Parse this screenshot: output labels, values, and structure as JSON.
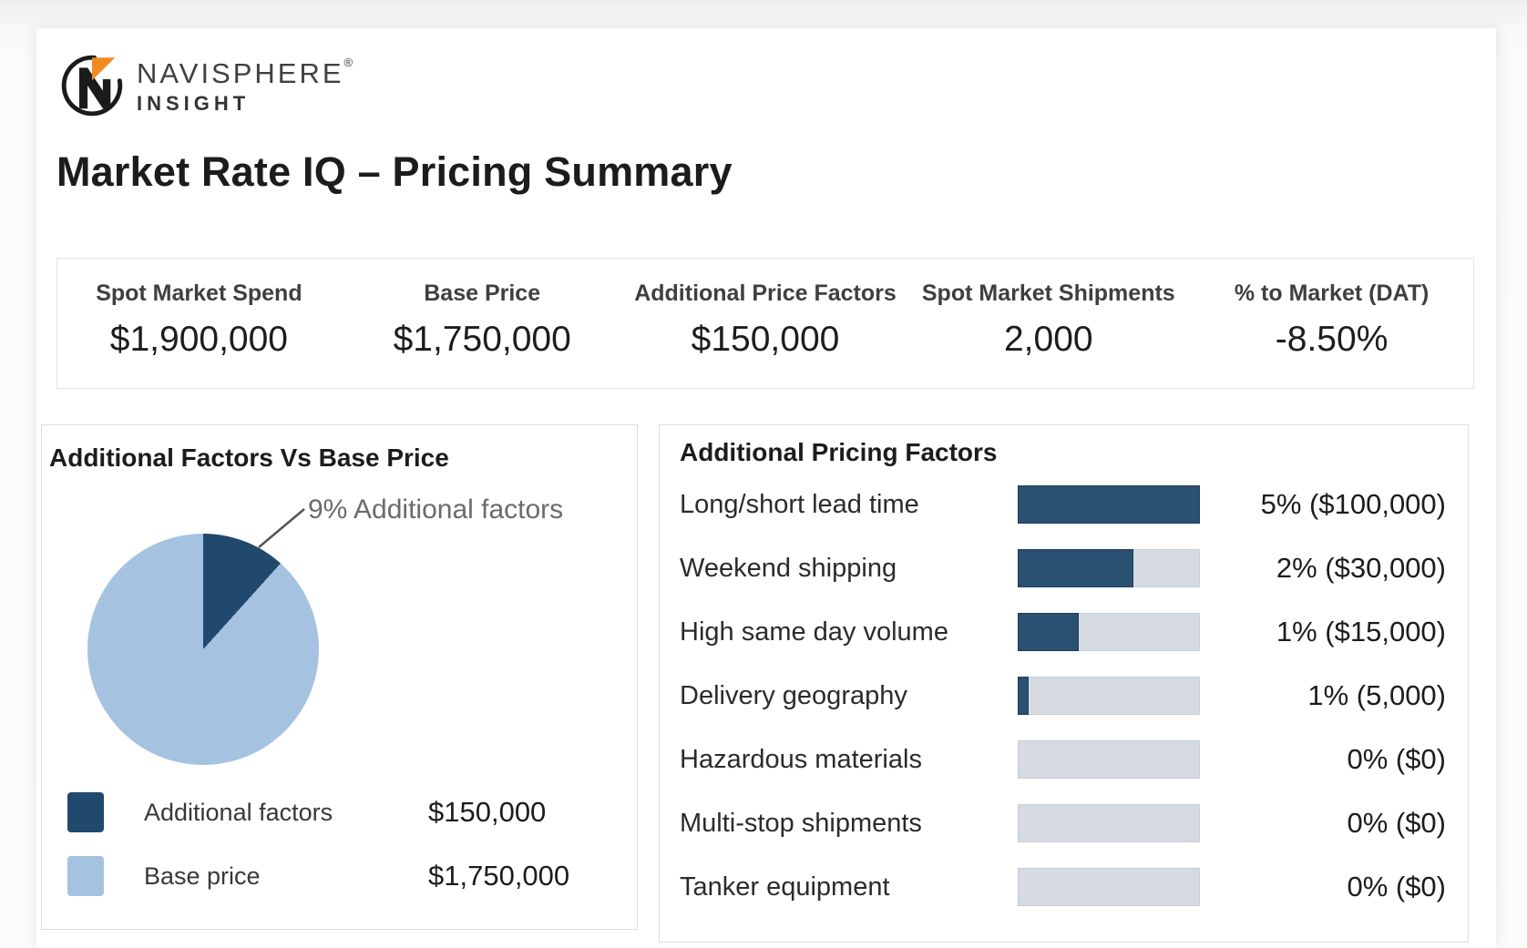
{
  "brand": {
    "name": "NAVISPHERE",
    "registered": "®",
    "sub": "INSIGHT"
  },
  "page_title": "Market Rate IQ – Pricing Summary",
  "kpis": [
    {
      "label": "Spot Market Spend",
      "value": "$1,900,000"
    },
    {
      "label": "Base Price",
      "value": "$1,750,000"
    },
    {
      "label": "Additional Price Factors",
      "value": "$150,000"
    },
    {
      "label": "Spot Market Shipments",
      "value": "2,000"
    },
    {
      "label": "% to Market (DAT)",
      "value": "-8.50%"
    }
  ],
  "colors": {
    "navy": "#2a5072",
    "pie_dark": "#21496d",
    "pie_light": "#a5c3e1",
    "track_gray": "#d6dbe1",
    "logo_orange": "#f08b21",
    "logo_black": "#1b1b1b"
  },
  "chart_data": [
    {
      "type": "pie",
      "title": "Additional Factors Vs Base Price",
      "annotation": "9% Additional factors",
      "slice_deg_visual": 42,
      "slices": [
        {
          "label": "Additional factors",
          "value": 150000,
          "display": "$150,000",
          "pct": 9,
          "color_key": "pie_dark"
        },
        {
          "label": "Base price",
          "value": 1750000,
          "display": "$1,750,000",
          "pct": 91,
          "color_key": "pie_light"
        }
      ],
      "legend_position": "bottom-left"
    },
    {
      "type": "bar",
      "orientation": "horizontal",
      "title": "Additional Pricing Factors",
      "rows": [
        {
          "label": "Long/short lead time",
          "value_label": "5% ($100,000)",
          "pct": 5,
          "amount": 100000,
          "fill_pct": 100
        },
        {
          "label": "Weekend shipping",
          "value_label": "2% ($30,000)",
          "pct": 2,
          "amount": 30000,
          "fill_pct": 63
        },
        {
          "label": "High same day volume",
          "value_label": "1% ($15,000)",
          "pct": 1,
          "amount": 15000,
          "fill_pct": 33
        },
        {
          "label": "Delivery geography",
          "value_label": "1% (5,000)",
          "pct": 1,
          "amount": 5000,
          "fill_pct": 5
        },
        {
          "label": "Hazardous materials",
          "value_label": "0% ($0)",
          "pct": 0,
          "amount": 0,
          "fill_pct": 0
        },
        {
          "label": "Multi-stop shipments",
          "value_label": "0% ($0)",
          "pct": 0,
          "amount": 0,
          "fill_pct": 0
        },
        {
          "label": "Tanker equipment",
          "value_label": "0% ($0)",
          "pct": 0,
          "amount": 0,
          "fill_pct": 0
        }
      ]
    }
  ]
}
